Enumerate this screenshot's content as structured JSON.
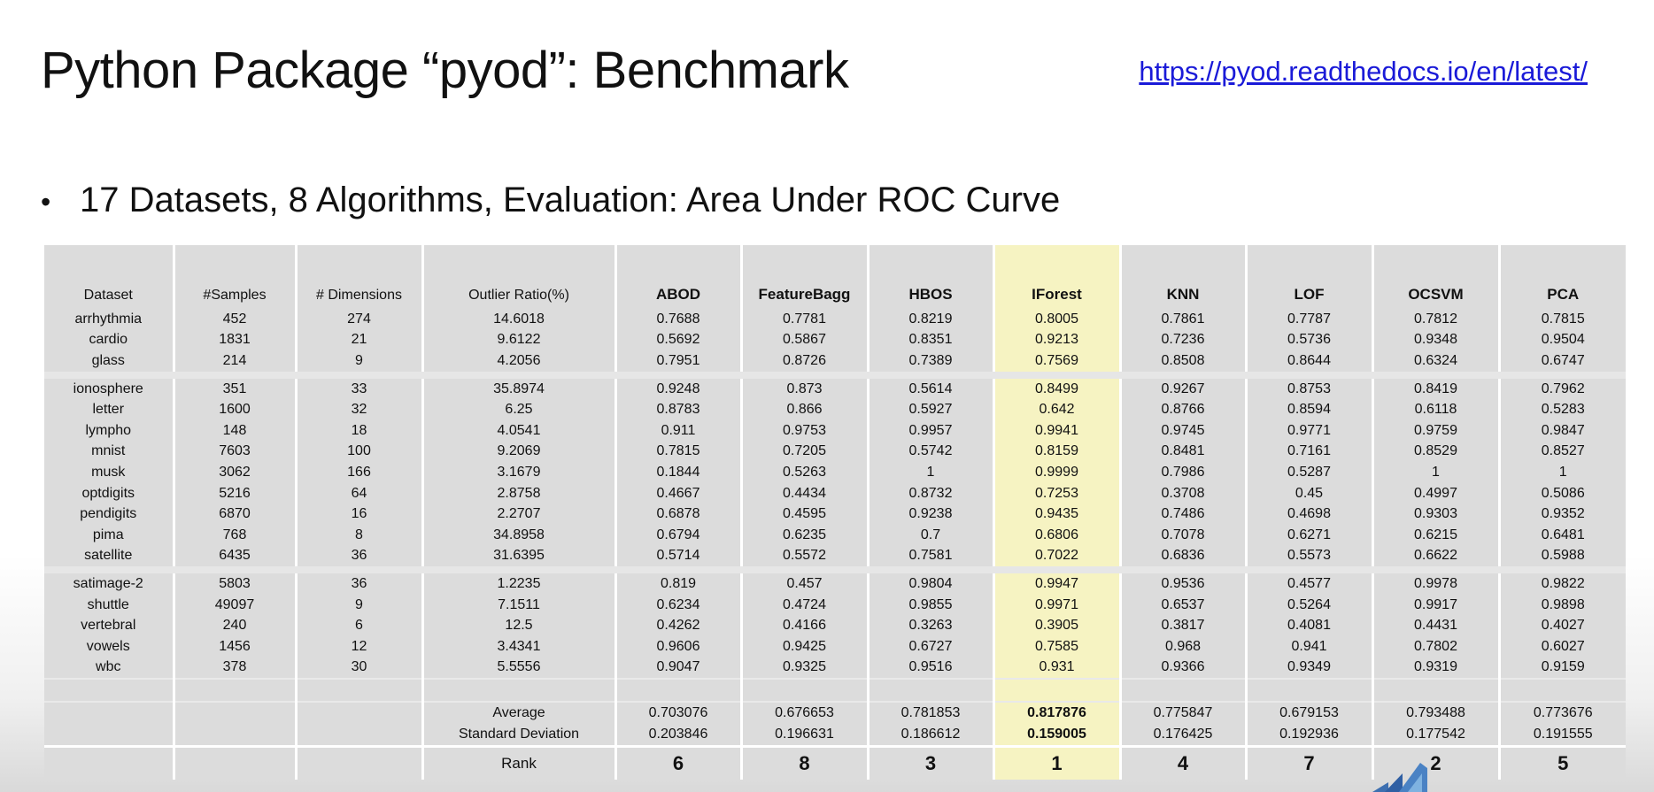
{
  "slide": {
    "title": "Python Package “pyod”: Benchmark",
    "link": "https://pyod.readthedocs.io/en/latest/",
    "bullet": "17 Datasets, 8 Algorithms,  Evaluation: Area Under ROC Curve",
    "bullet_symbol": "•"
  },
  "table": {
    "headers": [
      "Dataset",
      "#Samples",
      "# Dimensions",
      "Outlier Ratio(%)",
      "ABOD",
      "FeatureBagg",
      "HBOS",
      "IForest",
      "KNN",
      "LOF",
      "OCSVM",
      "PCA"
    ],
    "highlight_column": "IForest",
    "highlight_color": "#f6f3c2",
    "rows": [
      [
        "arrhythmia",
        "452",
        "274",
        "14.6018",
        "0.7688",
        "0.7781",
        "0.8219",
        "0.8005",
        "0.7861",
        "0.7787",
        "0.7812",
        "0.7815"
      ],
      [
        "cardio",
        "1831",
        "21",
        "9.6122",
        "0.5692",
        "0.5867",
        "0.8351",
        "0.9213",
        "0.7236",
        "0.5736",
        "0.9348",
        "0.9504"
      ],
      [
        "glass",
        "214",
        "9",
        "4.2056",
        "0.7951",
        "0.8726",
        "0.7389",
        "0.7569",
        "0.8508",
        "0.8644",
        "0.6324",
        "0.6747"
      ],
      [
        "ionosphere",
        "351",
        "33",
        "35.8974",
        "0.9248",
        "0.873",
        "0.5614",
        "0.8499",
        "0.9267",
        "0.8753",
        "0.8419",
        "0.7962"
      ],
      [
        "letter",
        "1600",
        "32",
        "6.25",
        "0.8783",
        "0.866",
        "0.5927",
        "0.642",
        "0.8766",
        "0.8594",
        "0.6118",
        "0.5283"
      ],
      [
        "lympho",
        "148",
        "18",
        "4.0541",
        "0.911",
        "0.9753",
        "0.9957",
        "0.9941",
        "0.9745",
        "0.9771",
        "0.9759",
        "0.9847"
      ],
      [
        "mnist",
        "7603",
        "100",
        "9.2069",
        "0.7815",
        "0.7205",
        "0.5742",
        "0.8159",
        "0.8481",
        "0.7161",
        "0.8529",
        "0.8527"
      ],
      [
        "musk",
        "3062",
        "166",
        "3.1679",
        "0.1844",
        "0.5263",
        "1",
        "0.9999",
        "0.7986",
        "0.5287",
        "1",
        "1"
      ],
      [
        "optdigits",
        "5216",
        "64",
        "2.8758",
        "0.4667",
        "0.4434",
        "0.8732",
        "0.7253",
        "0.3708",
        "0.45",
        "0.4997",
        "0.5086"
      ],
      [
        "pendigits",
        "6870",
        "16",
        "2.2707",
        "0.6878",
        "0.4595",
        "0.9238",
        "0.9435",
        "0.7486",
        "0.4698",
        "0.9303",
        "0.9352"
      ],
      [
        "pima",
        "768",
        "8",
        "34.8958",
        "0.6794",
        "0.6235",
        "0.7",
        "0.6806",
        "0.7078",
        "0.6271",
        "0.6215",
        "0.6481"
      ],
      [
        "satellite",
        "6435",
        "36",
        "31.6395",
        "0.5714",
        "0.5572",
        "0.7581",
        "0.7022",
        "0.6836",
        "0.5573",
        "0.6622",
        "0.5988"
      ],
      [
        "satimage-2",
        "5803",
        "36",
        "1.2235",
        "0.819",
        "0.457",
        "0.9804",
        "0.9947",
        "0.9536",
        "0.4577",
        "0.9978",
        "0.9822"
      ],
      [
        "shuttle",
        "49097",
        "9",
        "7.1511",
        "0.6234",
        "0.4724",
        "0.9855",
        "0.9971",
        "0.6537",
        "0.5264",
        "0.9917",
        "0.9898"
      ],
      [
        "vertebral",
        "240",
        "6",
        "12.5",
        "0.4262",
        "0.4166",
        "0.3263",
        "0.3905",
        "0.3817",
        "0.4081",
        "0.4431",
        "0.4027"
      ],
      [
        "vowels",
        "1456",
        "12",
        "3.4341",
        "0.9606",
        "0.9425",
        "0.6727",
        "0.7585",
        "0.968",
        "0.941",
        "0.7802",
        "0.6027"
      ],
      [
        "wbc",
        "378",
        "30",
        "5.5556",
        "0.9047",
        "0.9325",
        "0.9516",
        "0.931",
        "0.9366",
        "0.9349",
        "0.9319",
        "0.9159"
      ]
    ],
    "summary": [
      {
        "label": "Average",
        "values": [
          "0.703076",
          "0.676653",
          "0.781853",
          "0.817876",
          "0.775847",
          "0.679153",
          "0.793488",
          "0.773676"
        ]
      },
      {
        "label": "Standard Deviation",
        "values": [
          "0.203846",
          "0.196631",
          "0.186612",
          "0.159005",
          "0.176425",
          "0.192936",
          "0.177542",
          "0.191555"
        ]
      }
    ],
    "rank": {
      "label": "Rank",
      "values": [
        "6",
        "8",
        "3",
        "1",
        "4",
        "7",
        "2",
        "5"
      ]
    }
  }
}
